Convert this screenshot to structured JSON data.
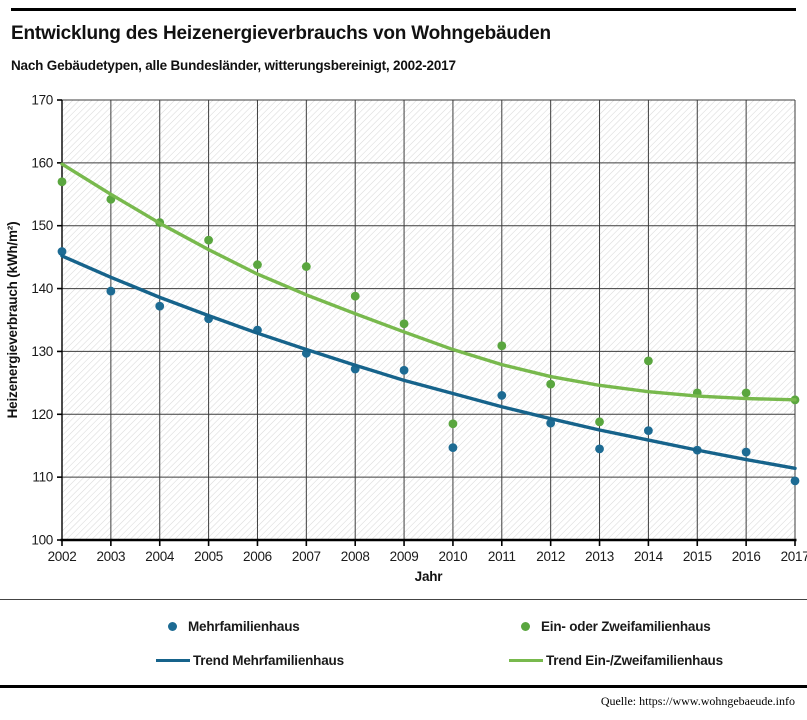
{
  "header": {
    "title": "Entwicklung des Heizenergieverbrauchs von Wohngebäuden",
    "subtitle": "Nach Gebäudetypen, alle Bundesländer, witterungsbereinigt, 2002-2017"
  },
  "footer": {
    "source": "Quelle: https://www.wohngebaeude.info"
  },
  "legend": {
    "items": [
      {
        "label": "Mehrfamilienhaus",
        "marker": "dot",
        "color": "#1d6b93"
      },
      {
        "label": "Ein- oder Zweifamilienhaus",
        "marker": "dot",
        "color": "#5aa63f"
      },
      {
        "label": "Trend Mehrfamilienhaus",
        "marker": "line",
        "color": "#16638b"
      },
      {
        "label": "Trend Ein-/Zweifamilienhaus",
        "marker": "line",
        "color": "#78b94d"
      }
    ]
  },
  "chart_data": {
    "type": "scatter",
    "title": "Entwicklung des Heizenergieverbrauchs von Wohngebäuden",
    "xlabel": "Jahr",
    "ylabel": "Heizenergieverbrauch (kWh/m²)",
    "ylim": [
      100,
      170
    ],
    "ytick_step": 10,
    "grid": true,
    "legend_position": "bottom",
    "background_hatch": true,
    "x": [
      2002,
      2003,
      2004,
      2005,
      2006,
      2007,
      2008,
      2009,
      2010,
      2011,
      2012,
      2013,
      2014,
      2015,
      2016,
      2017
    ],
    "series": [
      {
        "name": "Mehrfamilienhaus",
        "render": "scatter",
        "color": "#1d6b93",
        "values": [
          145.9,
          139.6,
          137.2,
          135.2,
          133.4,
          129.7,
          127.2,
          127.0,
          114.7,
          123.0,
          118.6,
          114.5,
          117.4,
          114.3,
          114.0,
          109.4
        ]
      },
      {
        "name": "Ein- oder Zweifamilienhaus",
        "render": "scatter",
        "color": "#5aa63f",
        "values": [
          157.0,
          154.2,
          150.5,
          147.7,
          143.8,
          143.5,
          138.8,
          134.4,
          118.5,
          130.9,
          124.8,
          118.8,
          128.5,
          123.4,
          123.4,
          122.3
        ]
      },
      {
        "name": "Trend Mehrfamilienhaus",
        "render": "line",
        "color": "#16638b",
        "values": [
          145.2,
          141.8,
          138.6,
          135.7,
          132.9,
          130.3,
          127.8,
          125.4,
          123.3,
          121.2,
          119.3,
          117.5,
          115.9,
          114.3,
          112.8,
          111.4
        ]
      },
      {
        "name": "Trend Ein-/Zweifamilienhaus",
        "render": "line",
        "color": "#78b94d",
        "values": [
          159.8,
          155.0,
          150.4,
          146.2,
          142.3,
          139.0,
          136.0,
          133.1,
          130.3,
          127.9,
          126.0,
          124.6,
          123.6,
          122.9,
          122.5,
          122.3
        ]
      }
    ]
  }
}
